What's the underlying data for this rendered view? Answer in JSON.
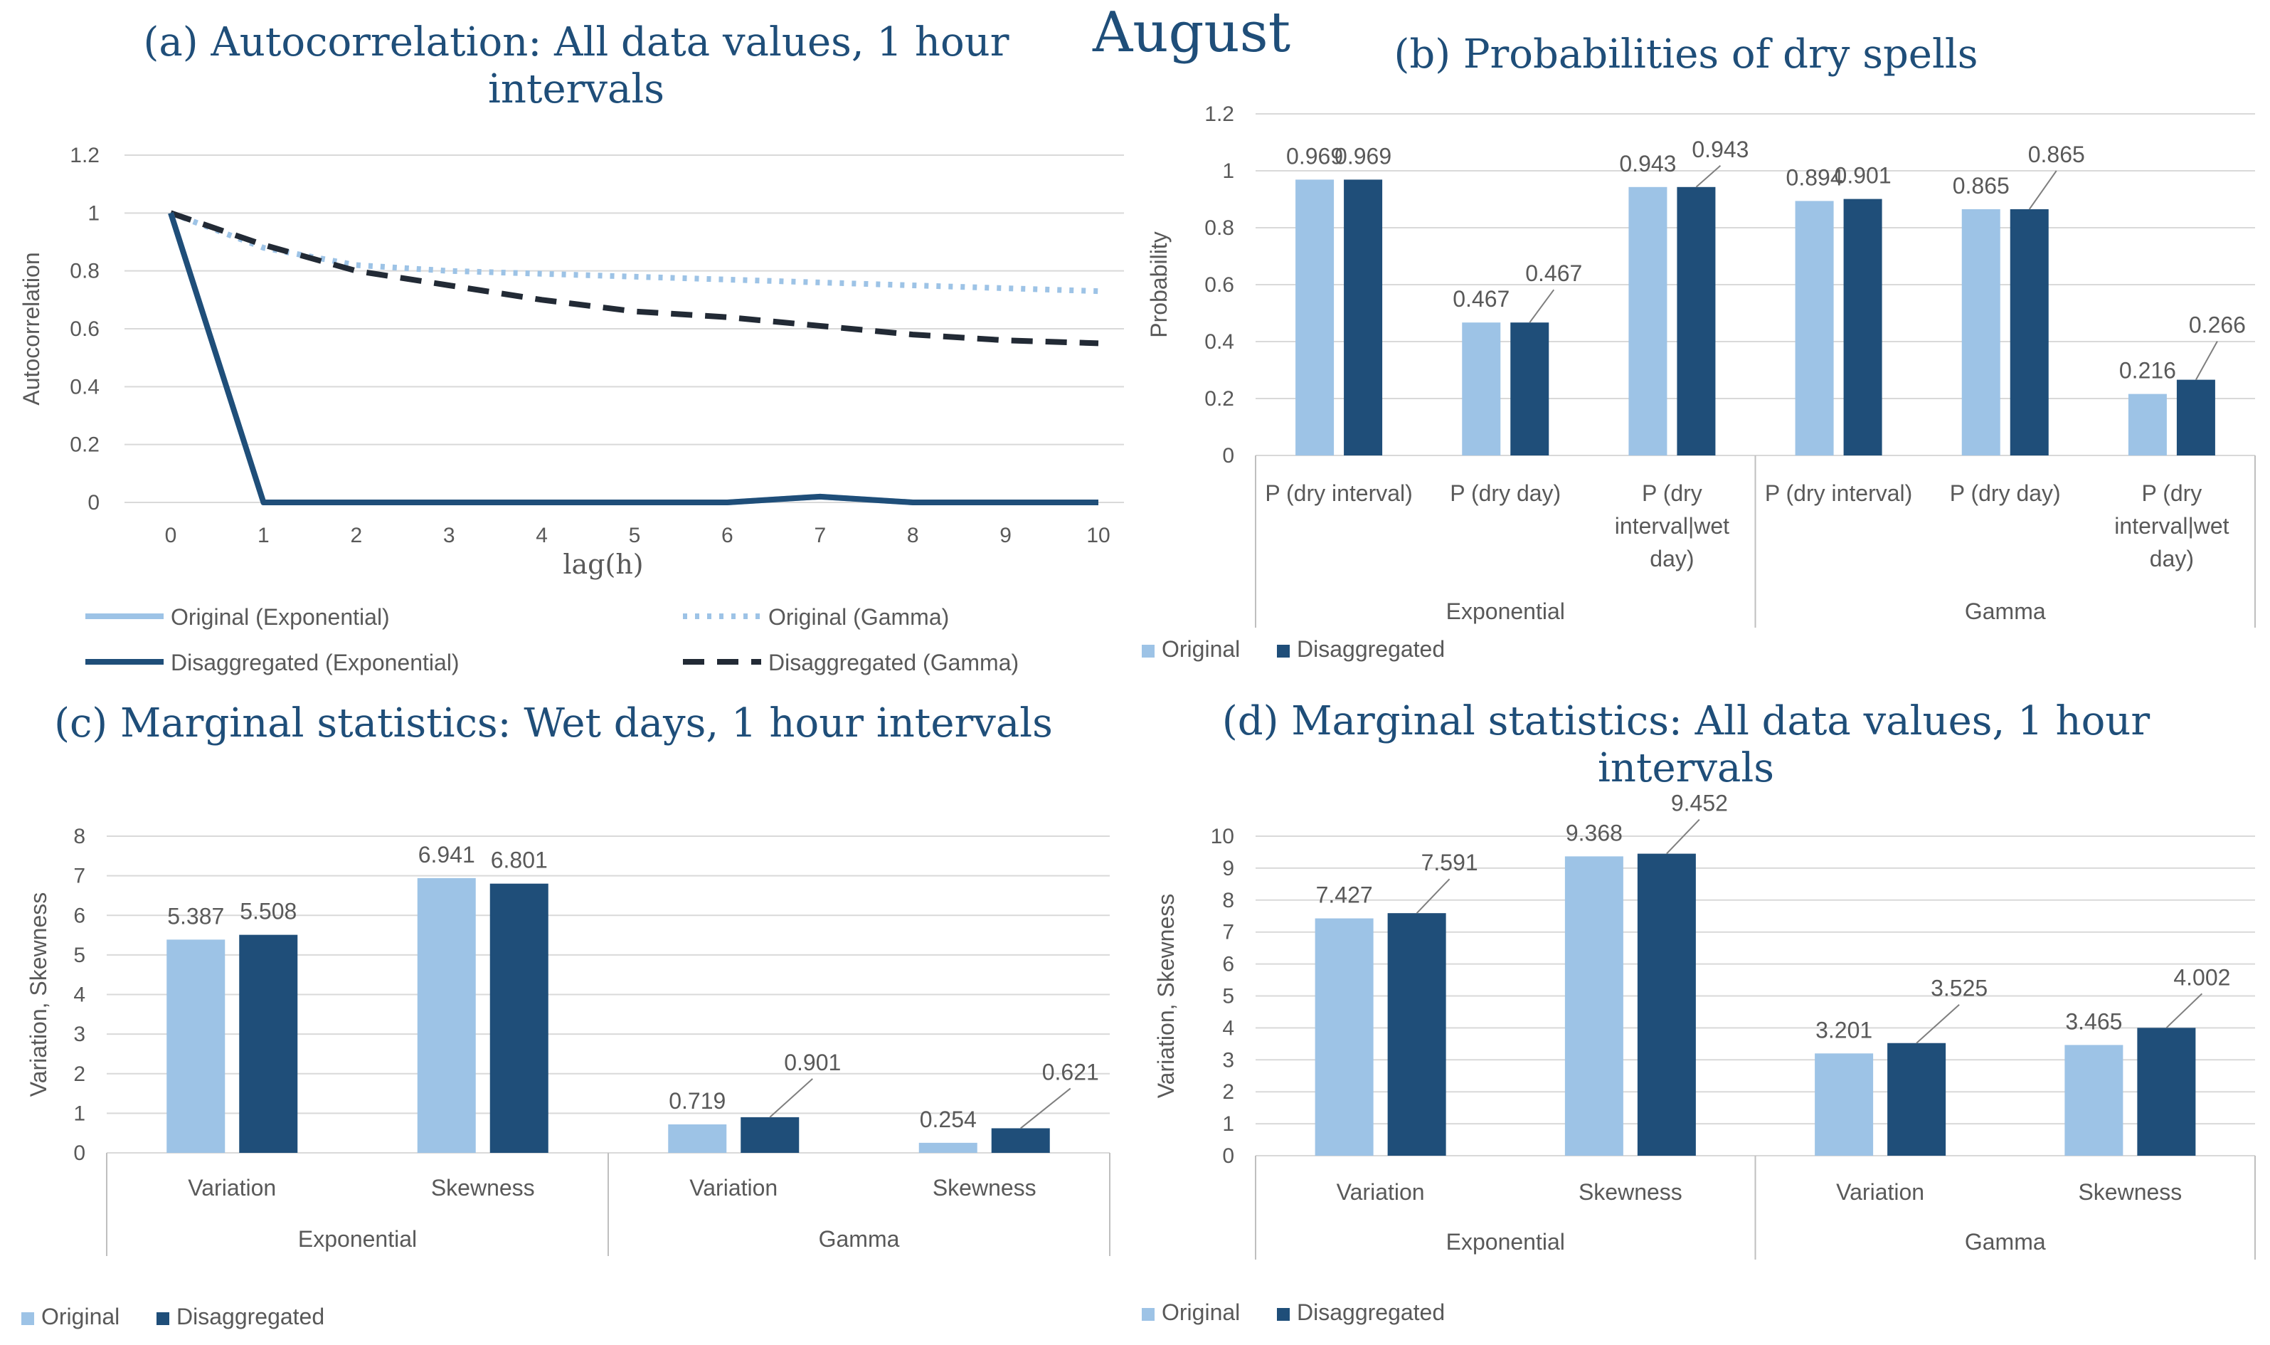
{
  "month_title": "August",
  "colors": {
    "original": "#9dc3e6",
    "disaggregated": "#1f4e79",
    "dark_dash": "#222a35",
    "title": "#1f4e79",
    "text": "#595959",
    "grid": "#d9d9d9",
    "axis": "#bfbfbf"
  },
  "chart_data": [
    {
      "id": "a",
      "type": "line",
      "title_prefix": "(a)",
      "title_lines": [
        "Autocorrelation: All data values, 1 hour",
        "intervals"
      ],
      "xlabel": "lag(h)",
      "ylabel": "Autocorrelation",
      "ylim": [
        0,
        1.2
      ],
      "yticks": [
        "0",
        "0.2",
        "0.4",
        "0.6",
        "0.8",
        "1",
        "1.2"
      ],
      "x": [
        0,
        1,
        2,
        3,
        4,
        5,
        6,
        7,
        8,
        9,
        10
      ],
      "series": [
        {
          "name": "Original (Exponential)",
          "style": "solid-light",
          "values": [
            1,
            0,
            0,
            0,
            0,
            0,
            0,
            0.02,
            0,
            0,
            0
          ]
        },
        {
          "name": "Original (Gamma)",
          "style": "dotted-light",
          "values": [
            1,
            0.88,
            0.82,
            0.8,
            0.79,
            0.78,
            0.77,
            0.76,
            0.75,
            0.74,
            0.73
          ]
        },
        {
          "name": "Disaggregated (Exponential)",
          "style": "solid-dark",
          "values": [
            1,
            0,
            0,
            0,
            0,
            0,
            0,
            0.02,
            0,
            0,
            0
          ]
        },
        {
          "name": "Disaggregated (Gamma)",
          "style": "dashed-dark",
          "values": [
            1,
            0.89,
            0.8,
            0.75,
            0.7,
            0.66,
            0.64,
            0.61,
            0.58,
            0.56,
            0.55
          ]
        }
      ],
      "legend_order": [
        0,
        1,
        2,
        3
      ]
    },
    {
      "id": "b",
      "type": "bar",
      "title_prefix": "(b)",
      "title_lines": [
        "Probabilities of dry spells"
      ],
      "ylabel": "Probability",
      "ylim": [
        0,
        1.2
      ],
      "yticks": [
        "0",
        "0.2",
        "0.4",
        "0.6",
        "0.8",
        "1",
        "1.2"
      ],
      "groups": [
        "Exponential",
        "Gamma"
      ],
      "categories": [
        [
          "P (dry interval)"
        ],
        [
          "P (dry day)"
        ],
        [
          "P (dry",
          "interval|wet",
          "day)"
        ],
        [
          "P (dry interval)"
        ],
        [
          "P (dry day)"
        ],
        [
          "P (dry",
          "interval|wet",
          "day)"
        ]
      ],
      "series": [
        {
          "name": "Original",
          "values": [
            0.969,
            0.467,
            0.943,
            0.894,
            0.865,
            0.216
          ],
          "labels": [
            "0.969",
            "0.467",
            "0.943",
            "0.894",
            "0.865",
            "0.216"
          ]
        },
        {
          "name": "Disaggregated",
          "values": [
            0.969,
            0.467,
            0.943,
            0.901,
            0.865,
            0.266
          ],
          "labels": [
            "0.969",
            "0.467",
            "0.943",
            "0.901",
            "0.865",
            "0.266"
          ]
        }
      ]
    },
    {
      "id": "c",
      "type": "bar",
      "title_prefix": "(c)",
      "title_lines": [
        "Marginal statistics: Wet days, 1 hour intervals"
      ],
      "ylabel": "Variation, Skewness",
      "ylim": [
        0,
        8
      ],
      "yticks": [
        "0",
        "1",
        "2",
        "3",
        "4",
        "5",
        "6",
        "7",
        "8"
      ],
      "groups": [
        "Exponential",
        "Gamma"
      ],
      "categories": [
        [
          "Variation"
        ],
        [
          "Skewness"
        ],
        [
          "Variation"
        ],
        [
          "Skewness"
        ]
      ],
      "series": [
        {
          "name": "Original",
          "values": [
            5.387,
            6.941,
            0.719,
            0.254
          ],
          "labels": [
            "5.387",
            "6.941",
            "0.719",
            "0.254"
          ]
        },
        {
          "name": "Disaggregated",
          "values": [
            5.508,
            6.801,
            0.901,
            0.621
          ],
          "labels": [
            "5.508",
            "6.801",
            "0.901",
            "0.621"
          ]
        }
      ]
    },
    {
      "id": "d",
      "type": "bar",
      "title_prefix": "(d)",
      "title_lines": [
        "Marginal statistics: All data values, 1 hour",
        "intervals"
      ],
      "ylabel": "Variation, Skewness",
      "ylim": [
        0,
        10
      ],
      "yticks": [
        "0",
        "1",
        "2",
        "3",
        "4",
        "5",
        "6",
        "7",
        "8",
        "9",
        "10"
      ],
      "groups": [
        "Exponential",
        "Gamma"
      ],
      "categories": [
        [
          "Variation"
        ],
        [
          "Skewness"
        ],
        [
          "Variation"
        ],
        [
          "Skewness"
        ]
      ],
      "series": [
        {
          "name": "Original",
          "values": [
            7.427,
            9.368,
            3.201,
            3.465
          ],
          "labels": [
            "7.427",
            "9.368",
            "3.201",
            "3.465"
          ]
        },
        {
          "name": "Disaggregated",
          "values": [
            7.591,
            9.452,
            3.525,
            4.002
          ],
          "labels": [
            "7.591",
            "9.452",
            "3.525",
            "4.002"
          ]
        }
      ]
    }
  ]
}
